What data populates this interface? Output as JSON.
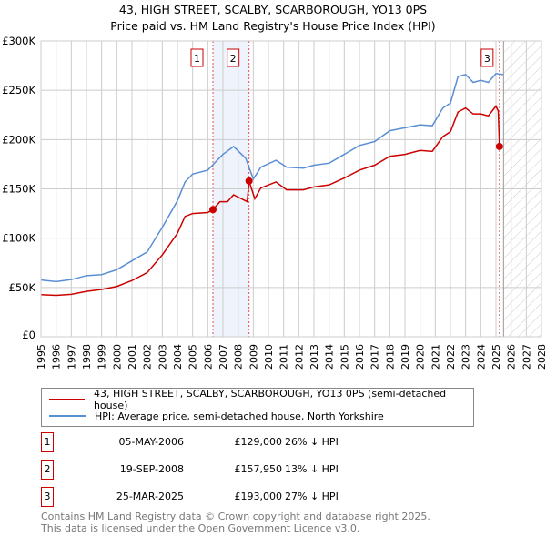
{
  "title": "43, HIGH STREET, SCALBY, SCARBOROUGH, YO13 0PS",
  "subtitle": "Price paid vs. HM Land Registry's House Price Index (HPI)",
  "chart_data": {
    "type": "line",
    "xlim": [
      1995,
      2028
    ],
    "ylim": [
      0,
      300000
    ],
    "yticks": [
      0,
      50000,
      100000,
      150000,
      200000,
      250000,
      300000
    ],
    "ytick_labels": [
      "£0",
      "£50K",
      "£100K",
      "£150K",
      "£200K",
      "£250K",
      "£300K"
    ],
    "xticks": [
      1995,
      1996,
      1997,
      1998,
      1999,
      2000,
      2001,
      2002,
      2003,
      2004,
      2005,
      2006,
      2007,
      2008,
      2009,
      2010,
      2011,
      2012,
      2013,
      2014,
      2015,
      2016,
      2017,
      2018,
      2019,
      2020,
      2021,
      2022,
      2023,
      2024,
      2025,
      2026,
      2027,
      2028
    ],
    "grid": true,
    "forecast_from": 2025.5,
    "highlight_span": [
      2006.34,
      2008.72
    ],
    "series": [
      {
        "name": "43, HIGH STREET, SCALBY, SCARBOROUGH, YO13 0PS (semi-detached house)",
        "color": "#cc0000",
        "x": [
          1995,
          1996,
          1997,
          1998,
          1999,
          2000,
          2001,
          2002,
          2003,
          2004,
          2004.5,
          2005,
          2006,
          2006.34,
          2006.8,
          2007.3,
          2007.7,
          2008.6,
          2008.72,
          2009.1,
          2009.5,
          2010.5,
          2011.2,
          2012.3,
          2013,
          2014,
          2015,
          2016,
          2017,
          2018,
          2019,
          2020,
          2020.8,
          2021.5,
          2022,
          2022.5,
          2023,
          2023.5,
          2024,
          2024.5,
          2025.0,
          2025.15,
          2025.23
        ],
        "y": [
          42700,
          42000,
          43000,
          46000,
          48000,
          51000,
          57000,
          65000,
          83000,
          105000,
          122000,
          125000,
          126000,
          129000,
          137000,
          137000,
          144000,
          137000,
          157950,
          140000,
          151000,
          157000,
          149000,
          149000,
          152000,
          154000,
          161000,
          169000,
          174000,
          183000,
          185000,
          189000,
          188000,
          203000,
          208000,
          228000,
          232000,
          226000,
          226000,
          224000,
          234000,
          229000,
          193000
        ]
      },
      {
        "name": "HPI: Average price, semi-detached house, North Yorkshire",
        "color": "#5b8fd4",
        "x": [
          1995,
          1996,
          1997,
          1998,
          1999,
          2000,
          2001,
          2002,
          2003,
          2004,
          2004.5,
          2005,
          2006,
          2006.5,
          2007,
          2007.7,
          2008.5,
          2009,
          2009.5,
          2010.5,
          2011.2,
          2012.3,
          2013,
          2014,
          2015,
          2016,
          2017,
          2018,
          2019,
          2020,
          2020.8,
          2021.5,
          2022,
          2022.5,
          2023,
          2023.5,
          2024,
          2024.5,
          2025,
          2025.5
        ],
        "y": [
          57600,
          56000,
          58000,
          62000,
          63000,
          68000,
          77000,
          86000,
          111000,
          138000,
          157000,
          165000,
          169000,
          177000,
          185000,
          193000,
          181000,
          160000,
          172000,
          179000,
          172000,
          171000,
          174000,
          176000,
          185000,
          194000,
          198000,
          209000,
          212000,
          215000,
          214000,
          232000,
          237000,
          264000,
          266000,
          258000,
          260000,
          258000,
          267000,
          266000
        ]
      }
    ],
    "sales": [
      {
        "label": "1",
        "x": 2006.34,
        "y": 129000,
        "date": "05-MAY-2006",
        "price": "£129,000",
        "hpi": "26% ↓ HPI"
      },
      {
        "label": "2",
        "x": 2008.72,
        "y": 157950,
        "date": "19-SEP-2008",
        "price": "£157,950",
        "hpi": "13% ↓ HPI"
      },
      {
        "label": "3",
        "x": 2025.23,
        "y": 193000,
        "date": "25-MAR-2025",
        "price": "£193,000",
        "hpi": "27% ↓ HPI"
      }
    ]
  },
  "legend": {
    "property": "43, HIGH STREET, SCALBY, SCARBOROUGH, YO13 0PS (semi-detached house)",
    "hpi": "HPI: Average price, semi-detached house, North Yorkshire"
  },
  "footer": {
    "line1": "Contains HM Land Registry data © Crown copyright and database right 2025.",
    "line2": "This data is licensed under the Open Government Licence v3.0."
  }
}
